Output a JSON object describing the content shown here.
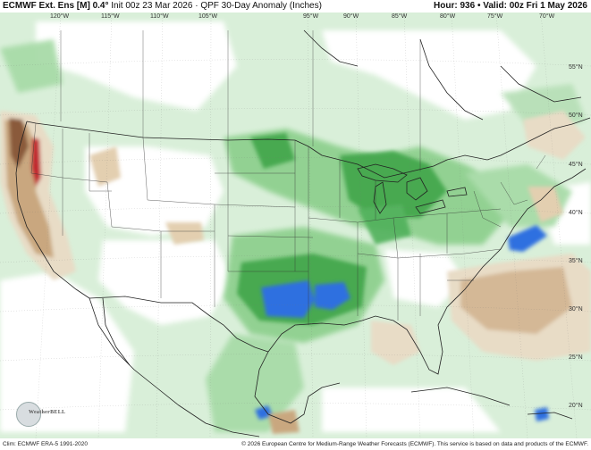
{
  "header": {
    "model": "ECMWF Ext. Ens [M]",
    "res": "0.4°",
    "init": "Init 00z 23 Mar 2026",
    "product": "QPF 30-Day Anomaly (Inches)",
    "hour_label": "Hour:",
    "hour": "936",
    "valid_label": "Valid:",
    "valid": "00z Fri 1 May 2026"
  },
  "footer": {
    "clim": "Clim: ECMWF ERA-5 1991-2020",
    "copyright": "© 2026 European Centre for Medium-Range Weather Forecasts (ECMWF). This service is based on data and products of the ECMWF."
  },
  "logo": {
    "text": "WeatherBELL"
  },
  "lon_labels": [
    "120°W",
    "115°W",
    "110°W",
    "105°W",
    "95°W",
    "90°W",
    "85°W",
    "80°W",
    "75°W",
    "70°W"
  ],
  "lat_labels": [
    "55°N",
    "50°N",
    "45°N",
    "40°N",
    "35°N",
    "30°N",
    "25°N",
    "20°N"
  ],
  "colors": {
    "wet_light": "#cfe9cf",
    "wet_mid": "#8fd08f",
    "wet_strong": "#3fa54a",
    "wet_heavy": "#2f6fe0",
    "dry_light": "#e8dcc6",
    "dry_mid": "#c9a77f",
    "dry_strong": "#8a5a3a",
    "dry_extreme": "#c1272d",
    "border": "#222222"
  }
}
